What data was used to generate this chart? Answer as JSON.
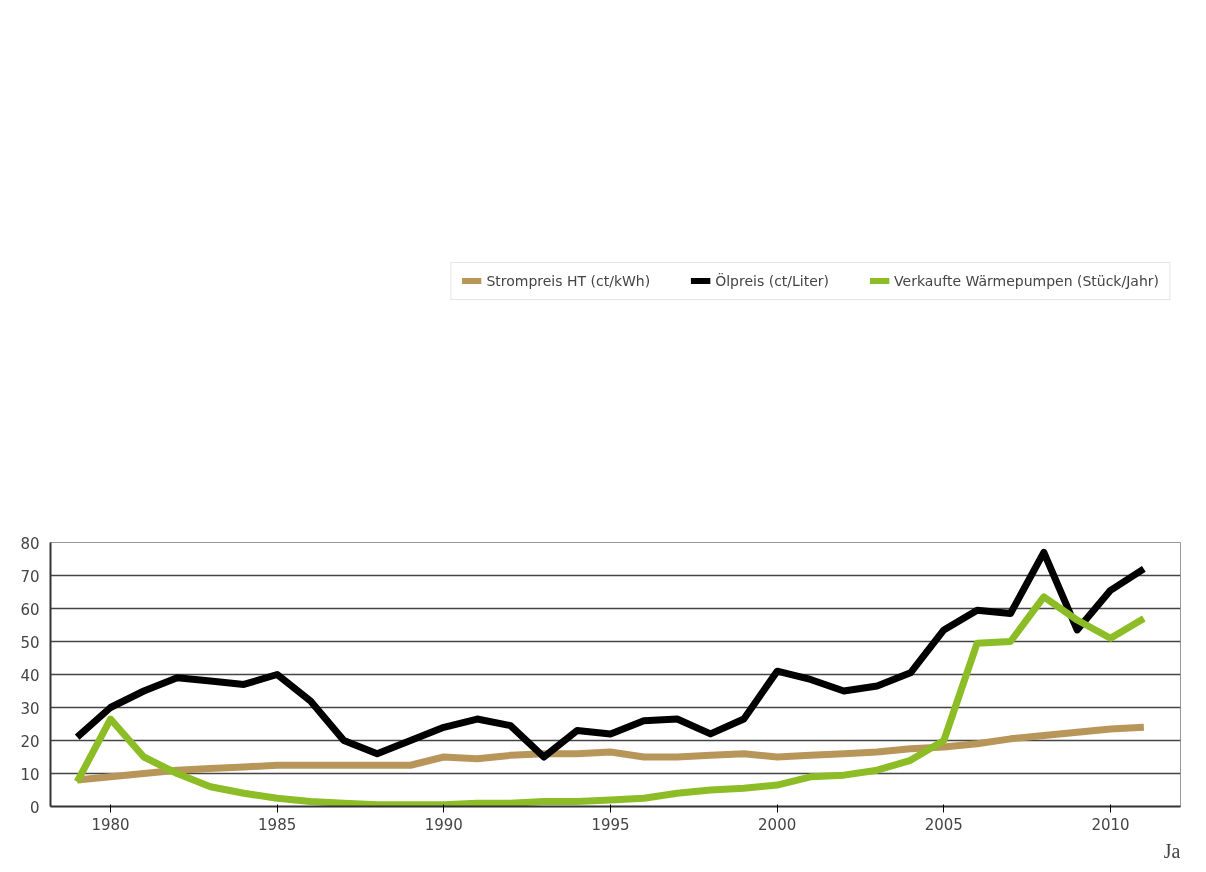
{
  "chart_data": {
    "type": "line",
    "xlabel": "Ja",
    "x": [
      1979,
      1980,
      1981,
      1982,
      1983,
      1984,
      1985,
      1986,
      1987,
      1988,
      1989,
      1990,
      1991,
      1992,
      1993,
      1994,
      1995,
      1996,
      1997,
      1998,
      1999,
      2000,
      2001,
      2002,
      2003,
      2004,
      2005,
      2006,
      2007,
      2008,
      2009,
      2010,
      2011
    ],
    "series": [
      {
        "name": "Strompreis HT (ct/kWh)",
        "color": "#b8965a",
        "values": [
          8,
          9,
          10,
          11,
          11.5,
          12,
          12.5,
          12.5,
          12.5,
          12.5,
          12.5,
          15,
          14.5,
          15.5,
          16,
          16,
          16.5,
          15,
          15,
          15.5,
          16,
          15,
          15.5,
          16,
          16.5,
          17.5,
          18,
          19,
          20.5,
          21.5,
          22.5,
          23.5,
          24
        ]
      },
      {
        "name": "Ölpreis (ct/Liter)",
        "color": "#000000",
        "values": [
          21,
          30,
          35,
          39,
          38,
          37,
          40,
          32,
          20,
          16,
          20,
          24,
          26.5,
          24.5,
          15,
          23,
          22,
          26,
          26.5,
          22,
          26.5,
          41,
          38.5,
          35,
          36.5,
          40.5,
          53.5,
          59.5,
          58.5,
          77,
          53.5,
          65.5,
          72
        ]
      },
      {
        "name": "Verkaufte Wärmepumpen (Stück/Jahr)",
        "color": "#8cbd26",
        "values": [
          7.5,
          26.5,
          15,
          10,
          6,
          4,
          2.5,
          1.5,
          1,
          0.5,
          0.5,
          0.5,
          1,
          1,
          1.5,
          1.5,
          2,
          2.5,
          4,
          5,
          5.5,
          6.5,
          9,
          9.5,
          11,
          14,
          20,
          49.5,
          50,
          63.5,
          56.5,
          51,
          57
        ]
      }
    ],
    "xlim": [
      1978.2,
      2012.1
    ],
    "xticks": [
      1980,
      1985,
      1990,
      1995,
      2000,
      2005,
      2010
    ],
    "ylim": [
      0,
      80
    ],
    "yticks": [
      0,
      10,
      20,
      30,
      40,
      50,
      60,
      70,
      80
    ],
    "grid": "y",
    "legend": "top",
    "line_style": "solid"
  }
}
